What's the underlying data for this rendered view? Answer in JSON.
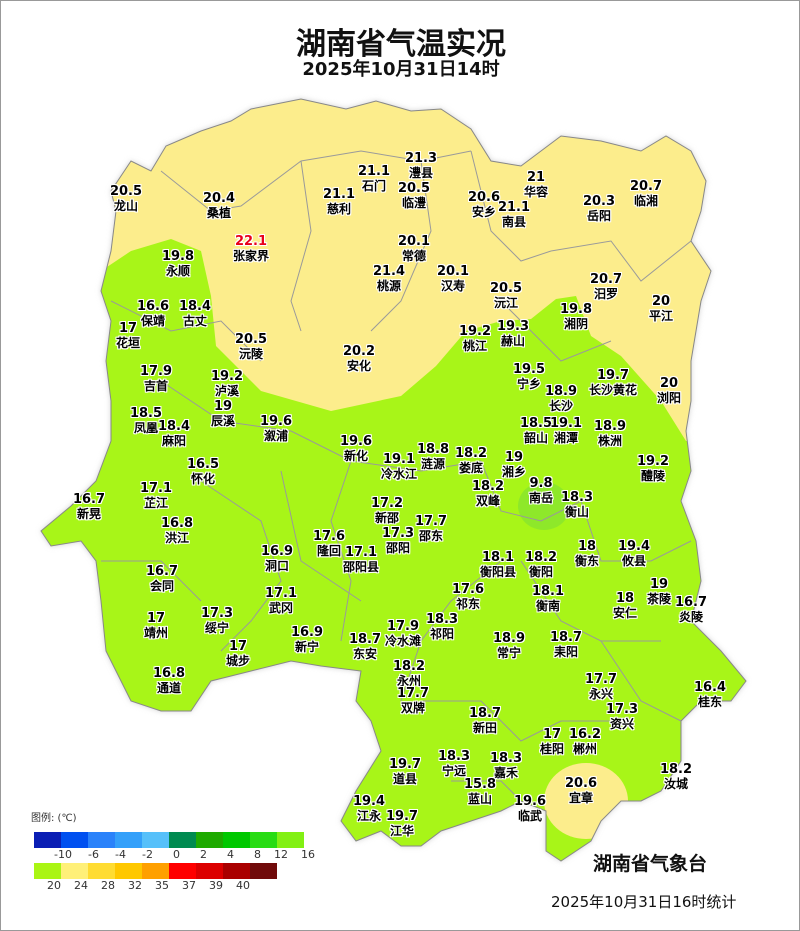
{
  "header": {
    "title": "湖南省气温实况",
    "subtitle": "2025年10月31日14时"
  },
  "colors": {
    "green": "#a8f518",
    "yellow": "#fced8c",
    "dark_green": "#8ee82a",
    "border": "#9a9a9a",
    "hot_text": "#e8001a"
  },
  "stations": [
    {
      "name": "龙山",
      "value": "20.5"
    },
    {
      "name": "桑植",
      "value": "20.4"
    },
    {
      "name": "张家界",
      "value": "22.1",
      "hot": true
    },
    {
      "name": "慈利",
      "value": "21.1"
    },
    {
      "name": "石门",
      "value": "21.1"
    },
    {
      "name": "澧县",
      "value": "21.3"
    },
    {
      "name": "临澧",
      "value": "20.5"
    },
    {
      "name": "安乡",
      "value": "20.6"
    },
    {
      "name": "华容",
      "value": "21"
    },
    {
      "name": "南县",
      "value": "21.1"
    },
    {
      "name": "岳阳",
      "value": "20.3"
    },
    {
      "name": "临湘",
      "value": "20.7"
    },
    {
      "name": "常德",
      "value": "20.1"
    },
    {
      "name": "永顺",
      "value": "19.8"
    },
    {
      "name": "桃源",
      "value": "21.4"
    },
    {
      "name": "汉寿",
      "value": "20.1"
    },
    {
      "name": "沅江",
      "value": "20.5"
    },
    {
      "name": "汨罗",
      "value": "20.7"
    },
    {
      "name": "湘阴",
      "value": "19.8"
    },
    {
      "name": "平江",
      "value": "20"
    },
    {
      "name": "保靖",
      "value": "16.6"
    },
    {
      "name": "古丈",
      "value": "18.4"
    },
    {
      "name": "花垣",
      "value": "17"
    },
    {
      "name": "沅陵",
      "value": "20.5"
    },
    {
      "name": "桃江",
      "value": "19.2"
    },
    {
      "name": "赫山",
      "value": "19.3"
    },
    {
      "name": "安化",
      "value": "20.2"
    },
    {
      "name": "吉首",
      "value": "17.9"
    },
    {
      "name": "泸溪",
      "value": "19.2"
    },
    {
      "name": "宁乡",
      "value": "19.5"
    },
    {
      "name": "长沙",
      "value": "18.9"
    },
    {
      "name": "长沙黄花",
      "value": "19.7"
    },
    {
      "name": "浏阳",
      "value": "20"
    },
    {
      "name": "凤凰",
      "value": "18.5"
    },
    {
      "name": "麻阳",
      "value": "18.4"
    },
    {
      "name": "辰溪",
      "value": "19"
    },
    {
      "name": "溆浦",
      "value": "19.6"
    },
    {
      "name": "韶山",
      "value": "18.5"
    },
    {
      "name": "湘潭",
      "value": "19.1"
    },
    {
      "name": "株洲",
      "value": "18.9"
    },
    {
      "name": "新化",
      "value": "19.6"
    },
    {
      "name": "冷水江",
      "value": "19.1"
    },
    {
      "name": "涟源",
      "value": "18.8"
    },
    {
      "name": "娄底",
      "value": "18.2"
    },
    {
      "name": "湘乡",
      "value": "19"
    },
    {
      "name": "醴陵",
      "value": "19.2"
    },
    {
      "name": "怀化",
      "value": "16.5"
    },
    {
      "name": "新晃",
      "value": "16.7"
    },
    {
      "name": "芷江",
      "value": "17.1"
    },
    {
      "name": "双峰",
      "value": "18.2"
    },
    {
      "name": "南岳",
      "value": "9.8"
    },
    {
      "name": "衡山",
      "value": "18.3"
    },
    {
      "name": "新邵",
      "value": "17.2"
    },
    {
      "name": "邵阳",
      "value": "17.3"
    },
    {
      "name": "邵东",
      "value": "17.7"
    },
    {
      "name": "洪江",
      "value": "16.8"
    },
    {
      "name": "隆回",
      "value": "17.6"
    },
    {
      "name": "邵阳县",
      "value": "17.1"
    },
    {
      "name": "衡东",
      "value": "18"
    },
    {
      "name": "攸县",
      "value": "19.4"
    },
    {
      "name": "洞口",
      "value": "16.9"
    },
    {
      "name": "衡阳县",
      "value": "18.1"
    },
    {
      "name": "衡阳",
      "value": "18.2"
    },
    {
      "name": "会同",
      "value": "16.7"
    },
    {
      "name": "武冈",
      "value": "17.1"
    },
    {
      "name": "祁东",
      "value": "17.6"
    },
    {
      "name": "衡南",
      "value": "18.1"
    },
    {
      "name": "安仁",
      "value": "18"
    },
    {
      "name": "茶陵",
      "value": "19"
    },
    {
      "name": "靖州",
      "value": "17"
    },
    {
      "name": "绥宁",
      "value": "17.3"
    },
    {
      "name": "冷水滩",
      "value": "17.9"
    },
    {
      "name": "祁阳",
      "value": "18.3"
    },
    {
      "name": "城步",
      "value": "17"
    },
    {
      "name": "新宁",
      "value": "16.9"
    },
    {
      "name": "东安",
      "value": "18.7"
    },
    {
      "name": "常宁",
      "value": "18.9"
    },
    {
      "name": "耒阳",
      "value": "18.7"
    },
    {
      "name": "炎陵",
      "value": "16.7"
    },
    {
      "name": "通道",
      "value": "16.8"
    },
    {
      "name": "永州",
      "value": "18.2"
    },
    {
      "name": "双牌",
      "value": "17.7"
    },
    {
      "name": "永兴",
      "value": "17.7"
    },
    {
      "name": "资兴",
      "value": "17.3"
    },
    {
      "name": "桂东",
      "value": "16.4"
    },
    {
      "name": "新田",
      "value": "18.7"
    },
    {
      "name": "桂阳",
      "value": "17"
    },
    {
      "name": "郴州",
      "value": "16.2"
    },
    {
      "name": "宁远",
      "value": "18.3"
    },
    {
      "name": "嘉禾",
      "value": "18.3"
    },
    {
      "name": "汝城",
      "value": "18.2"
    },
    {
      "name": "道县",
      "value": "19.7"
    },
    {
      "name": "蓝山",
      "value": "15.8"
    },
    {
      "name": "宜章",
      "value": "20.6"
    },
    {
      "name": "江永",
      "value": "19.4"
    },
    {
      "name": "江华",
      "value": "19.7"
    },
    {
      "name": "临武",
      "value": "19.6"
    }
  ],
  "legend": {
    "title": "图例:  (℃)",
    "row1": {
      "colors": [
        "#0a1eb4",
        "#0050f0",
        "#2a82fa",
        "#34a0fa",
        "#56c0fa",
        "#008a50",
        "#1eaa00",
        "#00c800",
        "#28dc14",
        "#82f014"
      ],
      "labels": [
        "-10",
        "-6",
        "-4",
        "-2",
        "0",
        "2",
        "4",
        "8",
        "12",
        "16"
      ]
    },
    "row2": {
      "colors": [
        "#aaf514",
        "#fff078",
        "#ffdc32",
        "#ffc800",
        "#ffa000",
        "#ff0000",
        "#dc0000",
        "#aa0000",
        "#700a0a"
      ],
      "labels": [
        "20",
        "24",
        "28",
        "32",
        "35",
        "37",
        "39",
        "40"
      ]
    }
  },
  "footer": {
    "agency": "湖南省气象台",
    "stat_time": "2025年10月31日16时统计"
  }
}
